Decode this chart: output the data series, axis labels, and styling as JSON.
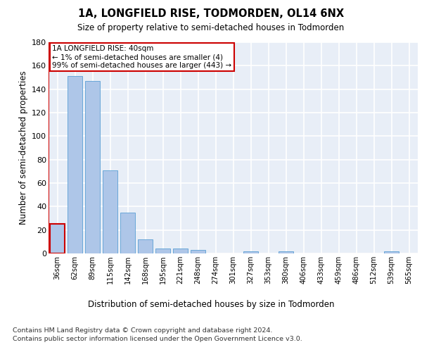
{
  "title1": "1A, LONGFIELD RISE, TODMORDEN, OL14 6NX",
  "title2": "Size of property relative to semi-detached houses in Todmorden",
  "xlabel": "Distribution of semi-detached houses by size in Todmorden",
  "ylabel": "Number of semi-detached properties",
  "categories": [
    "36sqm",
    "62sqm",
    "89sqm",
    "115sqm",
    "142sqm",
    "168sqm",
    "195sqm",
    "221sqm",
    "248sqm",
    "274sqm",
    "301sqm",
    "327sqm",
    "353sqm",
    "380sqm",
    "406sqm",
    "433sqm",
    "459sqm",
    "486sqm",
    "512sqm",
    "539sqm",
    "565sqm"
  ],
  "values": [
    25,
    151,
    147,
    71,
    35,
    12,
    4,
    4,
    3,
    0,
    0,
    2,
    0,
    2,
    0,
    0,
    0,
    0,
    0,
    2,
    0
  ],
  "bar_color": "#aec6e8",
  "bar_edge_color": "#5a9fd4",
  "highlight_bar_index": 0,
  "annotation_text": "1A LONGFIELD RISE: 40sqm\n← 1% of semi-detached houses are smaller (4)\n99% of semi-detached houses are larger (443) →",
  "annotation_box_color": "#ffffff",
  "annotation_box_edge_color": "#cc0000",
  "ylim": [
    0,
    180
  ],
  "yticks": [
    0,
    20,
    40,
    60,
    80,
    100,
    120,
    140,
    160,
    180
  ],
  "background_color": "#e8eef7",
  "grid_color": "#ffffff",
  "footer_line1": "Contains HM Land Registry data © Crown copyright and database right 2024.",
  "footer_line2": "Contains public sector information licensed under the Open Government Licence v3.0."
}
